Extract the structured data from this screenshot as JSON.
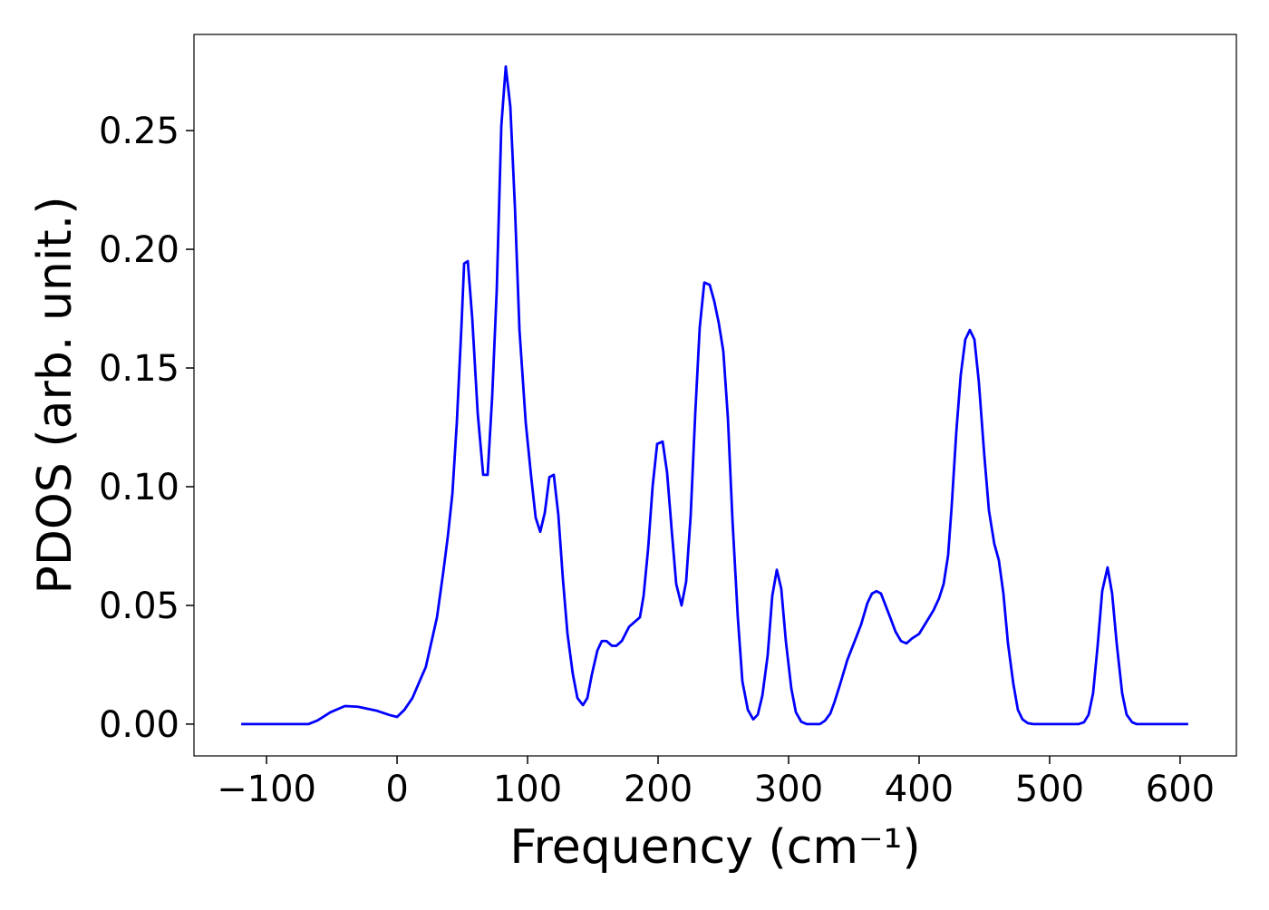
{
  "chart_data": {
    "type": "line",
    "xlabel": "Frequency (cm⁻¹)",
    "ylabel": "PDOS (arb. unit.)",
    "color": "#0000ff",
    "xlim": [
      -155.6,
      643.1
    ],
    "ylim": [
      -0.0134,
      0.2905
    ],
    "xticks": [
      {
        "value": -100,
        "label": "−100"
      },
      0,
      100,
      200,
      300,
      400,
      500,
      600
    ],
    "yticks": [
      {
        "value": 0,
        "label": "0.00"
      },
      {
        "value": 0.05,
        "label": "0.05"
      },
      {
        "value": 0.1,
        "label": "0.10"
      },
      {
        "value": 0.15,
        "label": "0.15"
      },
      {
        "value": 0.2,
        "label": "0.20"
      },
      {
        "value": 0.25,
        "label": "0.25"
      }
    ],
    "x": [
      -119.4,
      -68,
      -61,
      -51,
      -40,
      -30,
      -16,
      -5.6,
      0,
      5.6,
      11.8,
      18,
      22,
      30.6,
      35.4,
      38.9,
      42.4,
      45.8,
      49.3,
      51.4,
      54.2,
      57.6,
      61.8,
      66,
      69.4,
      72.9,
      76.4,
      79.9,
      83.3,
      86.8,
      90.3,
      93.8,
      98.6,
      102.8,
      106.2,
      109.7,
      113.2,
      116.7,
      120.1,
      123.6,
      127.1,
      130.6,
      134.7,
      138.2,
      142.4,
      145.8,
      149.3,
      153.5,
      156.9,
      160.4,
      164.6,
      168.1,
      172.2,
      177.8,
      181.9,
      186.1,
      188.9,
      192.4,
      195.8,
      199.3,
      203.5,
      206.9,
      210.4,
      213.9,
      218,
      221.5,
      225,
      228.5,
      231.9,
      235.4,
      239.6,
      243.1,
      246.5,
      250,
      253.5,
      257,
      261.1,
      264.6,
      268.8,
      272.9,
      276.4,
      279.9,
      284,
      287.5,
      291,
      294.4,
      297.9,
      302.1,
      305.6,
      309.7,
      313.9,
      324,
      328,
      332,
      335,
      339.6,
      345,
      350.7,
      355.6,
      360.4,
      363.9,
      367.4,
      370.8,
      374.3,
      377.8,
      381.9,
      386.1,
      390.3,
      394.4,
      400,
      405.6,
      411.1,
      415.3,
      418.8,
      422.2,
      425,
      428.5,
      431.9,
      435.4,
      438.9,
      442.4,
      445.8,
      450,
      453.5,
      457.6,
      461.1,
      464.6,
      468.1,
      472.2,
      475.7,
      479.2,
      483.3,
      487.5,
      522,
      526.4,
      529.9,
      533.3,
      536.8,
      540.3,
      544.4,
      547.9,
      551.4,
      555.6,
      559,
      563.2,
      566.7,
      606.2
    ],
    "values": [
      0,
      0,
      0.0015,
      0.005,
      0.0076,
      0.0073,
      0.0057,
      0.0038,
      0.003,
      0.006,
      0.011,
      0.019,
      0.024,
      0.045,
      0.064,
      0.079,
      0.097,
      0.127,
      0.167,
      0.194,
      0.195,
      0.171,
      0.131,
      0.105,
      0.105,
      0.138,
      0.183,
      0.252,
      0.277,
      0.26,
      0.218,
      0.166,
      0.127,
      0.104,
      0.087,
      0.081,
      0.089,
      0.104,
      0.105,
      0.088,
      0.061,
      0.038,
      0.021,
      0.011,
      0.008,
      0.011,
      0.021,
      0.031,
      0.035,
      0.035,
      0.033,
      0.033,
      0.035,
      0.041,
      0.043,
      0.045,
      0.054,
      0.074,
      0.1,
      0.118,
      0.119,
      0.106,
      0.082,
      0.059,
      0.05,
      0.06,
      0.088,
      0.131,
      0.167,
      0.186,
      0.185,
      0.178,
      0.169,
      0.157,
      0.129,
      0.086,
      0.045,
      0.018,
      0.006,
      0.002,
      0.004,
      0.012,
      0.029,
      0.054,
      0.065,
      0.057,
      0.035,
      0.015,
      0.005,
      0.001,
      0,
      0,
      0.0015,
      0.0045,
      0.009,
      0.017,
      0.027,
      0.035,
      0.042,
      0.051,
      0.055,
      0.056,
      0.055,
      0.05,
      0.045,
      0.039,
      0.035,
      0.034,
      0.036,
      0.038,
      0.043,
      0.048,
      0.053,
      0.059,
      0.071,
      0.092,
      0.123,
      0.147,
      0.162,
      0.166,
      0.162,
      0.144,
      0.113,
      0.09,
      0.076,
      0.069,
      0.055,
      0.034,
      0.017,
      0.006,
      0.002,
      0.0004,
      0,
      0,
      0.0008,
      0.004,
      0.013,
      0.033,
      0.056,
      0.066,
      0.055,
      0.034,
      0.013,
      0.004,
      0.0008,
      0,
      0
    ]
  }
}
